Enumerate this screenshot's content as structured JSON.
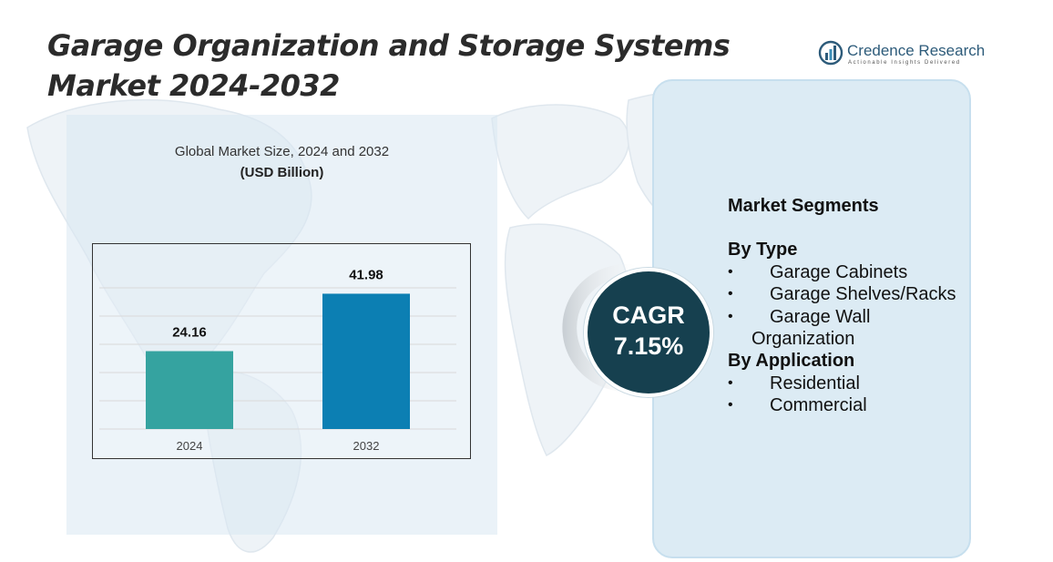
{
  "title": "Garage Organization and Storage Systems Market 2024-2032",
  "logo": {
    "name": "Credence Research",
    "tagline": "Actionable Insights Delivered"
  },
  "chart_data": {
    "type": "bar",
    "title": "Global Market Size, 2024 and 2032",
    "subtitle": "(USD Billion)",
    "categories": [
      "2024",
      "2032"
    ],
    "values": [
      24.16,
      41.98
    ],
    "data_labels": [
      "24.16",
      "41.98"
    ],
    "colors": [
      "#35a3a0",
      "#0c7fb3"
    ],
    "ylim": [
      0,
      52
    ],
    "grid": true,
    "legend": "none"
  },
  "cagr": {
    "label": "CAGR",
    "value": "7.15%"
  },
  "segments": {
    "heading": "Market Segments",
    "groups": [
      {
        "title": "By Type",
        "items": [
          "Garage Cabinets",
          "Garage Shelves/Racks",
          "Garage Wall Organization"
        ]
      },
      {
        "title": "By Application",
        "items": [
          "Residential",
          "Commercial"
        ]
      }
    ]
  },
  "colors": {
    "panel": "#dcebf4",
    "cagr_circle": "#16404f",
    "title": "#2b2b2b"
  },
  "icons": {
    "logo": "bar-chart-globe-icon",
    "background": "world-map"
  }
}
